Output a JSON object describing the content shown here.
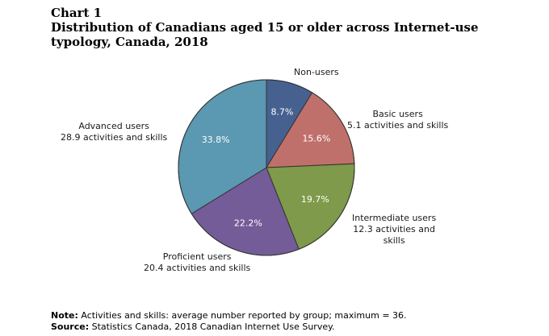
{
  "header": {
    "label": "Chart 1",
    "title": "Distribution  of Canadians aged 15 or older across Internet-use typology, Canada, 2018"
  },
  "chart_data": {
    "type": "pie",
    "start_angle": "12 o'clock, clockwise",
    "slices": [
      {
        "name": "Non-users",
        "sub": "",
        "value": 8.7,
        "label": "8.7%",
        "color": "#46618f"
      },
      {
        "name": "Basic users",
        "sub": "5.1 activities and skills",
        "value": 15.6,
        "label": "15.6%",
        "color": "#c0706a"
      },
      {
        "name": "Intermediate users",
        "sub": "12.3 activities and skills",
        "value": 19.7,
        "label": "19.7%",
        "color": "#7e9a4a"
      },
      {
        "name": "Proficient users",
        "sub": "20.4 activities and skills",
        "value": 22.2,
        "label": "22.2%",
        "color": "#745c98"
      },
      {
        "name": "Advanced users",
        "sub": "28.9 activities and skills",
        "value": 33.8,
        "label": "33.8%",
        "color": "#5b98b1"
      }
    ]
  },
  "labels": {
    "nonusers": {
      "line1": "Non-users"
    },
    "basic": {
      "line1": "Basic users",
      "line2": "5.1 activities and skills"
    },
    "intermediate": {
      "line1": "Intermediate users",
      "line2": "12.3 activities and",
      "line3": "skills"
    },
    "proficient": {
      "line1": "Proficient users",
      "line2": "20.4 activities and skills"
    },
    "advanced": {
      "line1": "Advanced users",
      "line2": "28.9 activities and skills"
    }
  },
  "notes": {
    "note_label": "Note:",
    "note_text": " Activities and skills: average number reported by group; maximum = 36.",
    "source_label": "Source:",
    "source_text": " Statistics Canada, 2018 Canadian Internet Use Survey."
  }
}
